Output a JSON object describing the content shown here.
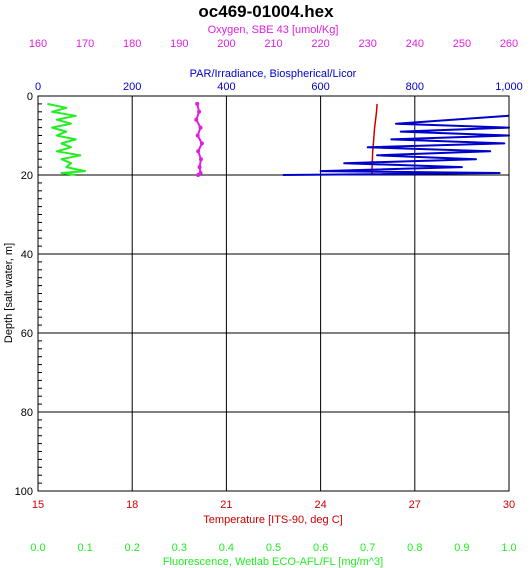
{
  "title": "oc469-01004.hex",
  "chart_data": {
    "type": "line",
    "title": "oc469-01004.hex",
    "colors": {
      "oxygen": "#e020e0",
      "par": "#0000cc",
      "temperature": "#cc0000",
      "fluorescence": "#22ee22",
      "grid": "#000000"
    },
    "axes": {
      "oxygen": {
        "label": "Oxygen, SBE 43 [umol/Kg]",
        "position": "top-outer",
        "range": [
          160,
          260
        ],
        "ticks": [
          "160",
          "170",
          "180",
          "190",
          "200",
          "210",
          "220",
          "230",
          "240",
          "250",
          "260"
        ]
      },
      "par": {
        "label": "PAR/Irradiance, Biospherical/Licor",
        "position": "top-inner",
        "range": [
          0,
          1000
        ],
        "ticks": [
          "0",
          "200",
          "400",
          "600",
          "800",
          "1,000"
        ]
      },
      "depth": {
        "label": "Depth [salt water, m]",
        "position": "left",
        "range": [
          0,
          100
        ],
        "inverted": true,
        "ticks": [
          "0",
          "20",
          "40",
          "60",
          "80",
          "100"
        ]
      },
      "temperature": {
        "label": "Temperature [ITS-90, deg C]",
        "position": "bottom-inner",
        "range": [
          15,
          30
        ],
        "ticks": [
          "15",
          "18",
          "21",
          "24",
          "27",
          "30"
        ]
      },
      "fluorescence": {
        "label": "Fluorescence, Wetlab ECO-AFL/FL [mg/m^3]",
        "position": "bottom-outer",
        "range": [
          0,
          1
        ],
        "ticks": [
          "0.0",
          "0.1",
          "0.2",
          "0.3",
          "0.4",
          "0.5",
          "0.6",
          "0.7",
          "0.8",
          "0.9",
          "1.0"
        ]
      }
    },
    "grid": true,
    "series": [
      {
        "name": "Temperature [ITS-90, deg C]",
        "axis": "temperature",
        "points": [
          [
            25.8,
            2
          ],
          [
            25.78,
            4
          ],
          [
            25.75,
            6
          ],
          [
            25.72,
            8
          ],
          [
            25.7,
            10
          ],
          [
            25.68,
            12
          ],
          [
            25.66,
            14
          ],
          [
            25.65,
            16
          ],
          [
            25.64,
            18
          ],
          [
            25.63,
            20
          ]
        ]
      },
      {
        "name": "Oxygen, SBE 43 [umol/Kg]",
        "axis": "oxygen",
        "points": [
          [
            193.8,
            2
          ],
          [
            194.2,
            4
          ],
          [
            193.6,
            6
          ],
          [
            194.5,
            8
          ],
          [
            193.9,
            10
          ],
          [
            194.8,
            12
          ],
          [
            194.0,
            14
          ],
          [
            194.6,
            16
          ],
          [
            194.3,
            18
          ],
          [
            194.5,
            19.5
          ],
          [
            194.0,
            20
          ]
        ]
      },
      {
        "name": "Fluorescence, Wetlab ECO-AFL/FL [mg/m^3]",
        "axis": "fluorescence",
        "points": [
          [
            0.02,
            2
          ],
          [
            0.06,
            3
          ],
          [
            0.03,
            4
          ],
          [
            0.08,
            5
          ],
          [
            0.04,
            6
          ],
          [
            0.07,
            7
          ],
          [
            0.03,
            8
          ],
          [
            0.06,
            9
          ],
          [
            0.04,
            10
          ],
          [
            0.08,
            11
          ],
          [
            0.05,
            12
          ],
          [
            0.07,
            13
          ],
          [
            0.04,
            14
          ],
          [
            0.09,
            15
          ],
          [
            0.05,
            16
          ],
          [
            0.07,
            17
          ],
          [
            0.06,
            18
          ],
          [
            0.1,
            19
          ],
          [
            0.05,
            19.5
          ],
          [
            0.08,
            20
          ]
        ]
      },
      {
        "name": "PAR/Irradiance, Biospherical/Licor",
        "axis": "par",
        "points": [
          [
            1000,
            5
          ],
          [
            760,
            7
          ],
          [
            1000,
            8
          ],
          [
            770,
            9
          ],
          [
            1000,
            10
          ],
          [
            750,
            11
          ],
          [
            990,
            12
          ],
          [
            700,
            13
          ],
          [
            960,
            14
          ],
          [
            720,
            15
          ],
          [
            930,
            16
          ],
          [
            650,
            17
          ],
          [
            900,
            18
          ],
          [
            600,
            19
          ],
          [
            980,
            19.5
          ],
          [
            520,
            20
          ]
        ]
      }
    ]
  }
}
